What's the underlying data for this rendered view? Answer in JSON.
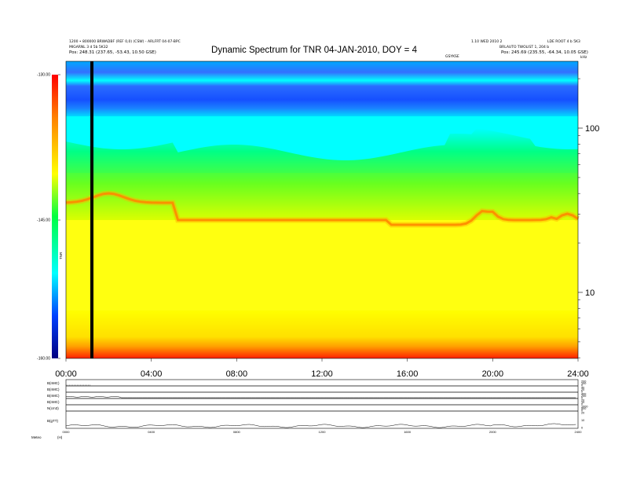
{
  "header": {
    "title": "Dynamic Spectrum for TNR 04-JAN-2010, DOY = 4",
    "left_line1": "1200 • 800000 BRWADBF (REF 0,0) (CSW) - ARLFRT 04-07-BPC",
    "left_line2": "MIGARNL 3 d 5b 5K32",
    "left_line3": "Pos:   248.31 (237.65, -53.43, 10.50 GSE)",
    "right_line1": "1.10 WED 2010 2",
    "right_line2": "LDE ROOT 4 b 5K3",
    "right_line3": "BRLAUTO TWOLIST 1, 204 b",
    "right_line4": "Pos:   245.69 (235.55, -64.34, 10.05 GSE)",
    "mid_small": "GSYKSE",
    "khz": "kHz",
    "tnr_label": "TNR"
  },
  "colorbar": {
    "ticks": [
      "-130.00",
      "-145.00",
      "-160.00"
    ]
  },
  "chart_data": [
    {
      "type": "heatmap",
      "title": "Dynamic Spectrum for TNR 04-JAN-2010, DOY = 4",
      "x_ticks": [
        "00:00",
        "04:00",
        "08:00",
        "12:00",
        "16:00",
        "20:00",
        "24:00"
      ],
      "xlim_hours": [
        0,
        24
      ],
      "y_scale": "log",
      "y_ticks": [
        "100",
        "10"
      ],
      "y_units": "kHz",
      "colorbar_label": "TNR",
      "colorbar_range": [
        -160,
        -130
      ],
      "colormap": [
        "#000080",
        "#0000ff",
        "#00ffff",
        "#00ff00",
        "#ffff00",
        "#ff8000",
        "#ff0000"
      ],
      "data_gap_hour": 1.2,
      "features": [
        {
          "name": "background-band",
          "hours": [
            0,
            24
          ],
          "level_db": -131
        },
        {
          "name": "emission-peak-ridge",
          "hours": [
            0,
            24
          ],
          "level_db": -145
        }
      ]
    },
    {
      "type": "line",
      "panels": [
        {
          "label": "B(nMC)",
          "right_ticks": [
            "200",
            "100",
            "0"
          ]
        },
        {
          "label": "B(nMC)",
          "right_ticks": [
            "40",
            "20",
            "0"
          ]
        },
        {
          "label": "B(nMC)",
          "right_ticks": [
            "400",
            "200",
            "0"
          ]
        },
        {
          "label": "B(nMC)",
          "right_ticks": [
            "20",
            "10",
            "0"
          ]
        },
        {
          "label": "N(cm3)",
          "right_ticks": [
            "1000",
            "500",
            "0"
          ]
        },
        {
          "label": "B(gTT)",
          "right_ticks": [
            "20",
            "10",
            "0"
          ]
        }
      ],
      "x_ticks": [
        "0000",
        "0400",
        "0800",
        "1200",
        "1600",
        "2000",
        "2400"
      ],
      "footer_label": "Meteo",
      "footer_value": "(H)"
    }
  ]
}
